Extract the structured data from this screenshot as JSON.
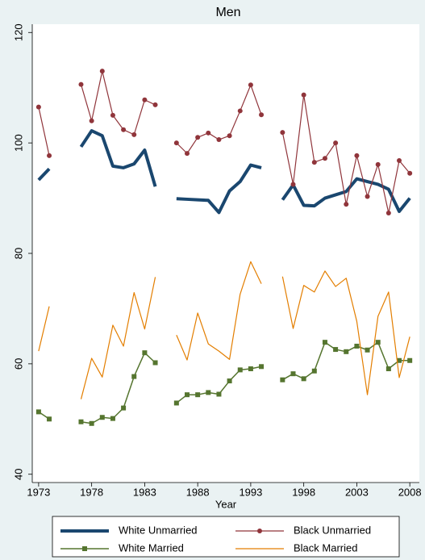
{
  "chart_data": {
    "type": "line",
    "title": "Men",
    "x_label": "Year",
    "x": [
      1973,
      1974,
      1975,
      1976,
      1977,
      1978,
      1979,
      1980,
      1981,
      1982,
      1983,
      1984,
      1985,
      1986,
      1987,
      1988,
      1989,
      1990,
      1991,
      1992,
      1993,
      1994,
      1995,
      1996,
      1997,
      1998,
      1999,
      2000,
      2001,
      2002,
      2003,
      2004,
      2005,
      2006,
      2007,
      2008
    ],
    "xlim": [
      1972.4,
      2008.9
    ],
    "xticks": [
      1973,
      1978,
      1983,
      1988,
      1993,
      1998,
      2003,
      2008
    ],
    "ylim": [
      38.5,
      121.5
    ],
    "yticks": [
      40,
      60,
      80,
      100,
      120
    ],
    "legend": "bottom",
    "series": [
      {
        "name": "White Unmarried",
        "color": "#1a476f",
        "line_width": 4,
        "marker": "none",
        "values": [
          93.3,
          95.3,
          null,
          null,
          99.3,
          102.2,
          101.3,
          95.8,
          95.5,
          96.2,
          98.7,
          92.1,
          null,
          89.9,
          89.8,
          89.7,
          89.6,
          87.4,
          91.3,
          93.0,
          96.0,
          95.5,
          null,
          89.7,
          92.4,
          88.7,
          88.6,
          90.0,
          90.6,
          91.2,
          93.5,
          93.0,
          92.5,
          91.6,
          87.6,
          90.0
        ]
      },
      {
        "name": "Black Unmarried",
        "color": "#90353b",
        "line_width": 1.2,
        "marker": "circle",
        "values": [
          106.5,
          97.7,
          null,
          null,
          110.6,
          104.0,
          113.0,
          105.0,
          102.4,
          101.5,
          107.8,
          106.9,
          null,
          100.0,
          98.1,
          101.0,
          101.8,
          100.6,
          101.3,
          105.8,
          110.5,
          105.1,
          null,
          101.9,
          92.5,
          108.7,
          96.5,
          97.2,
          100.0,
          88.9,
          97.7,
          90.3,
          96.1,
          87.3,
          96.8,
          94.5
        ]
      },
      {
        "name": "White Married",
        "color": "#55752f",
        "line_width": 1.5,
        "marker": "square",
        "values": [
          51.3,
          50.0,
          null,
          null,
          49.5,
          49.2,
          50.3,
          50.1,
          52.0,
          57.7,
          62.0,
          60.2,
          null,
          52.9,
          54.4,
          54.4,
          54.8,
          54.5,
          56.9,
          58.9,
          59.1,
          59.5,
          null,
          57.1,
          58.2,
          57.3,
          58.7,
          63.9,
          62.6,
          62.2,
          63.2,
          62.5,
          63.9,
          59.1,
          60.6,
          60.6
        ]
      },
      {
        "name": "Black Married",
        "color": "#e37e00",
        "line_width": 1.2,
        "marker": "none",
        "values": [
          62.3,
          70.4,
          null,
          null,
          53.6,
          61.0,
          57.6,
          67.0,
          63.2,
          72.9,
          66.3,
          75.7,
          null,
          65.2,
          60.7,
          69.2,
          63.6,
          62.3,
          60.8,
          72.6,
          78.5,
          74.5,
          null,
          75.8,
          66.4,
          74.2,
          73.0,
          76.8,
          74.0,
          75.5,
          67.7,
          54.4,
          68.6,
          73.0,
          57.5,
          64.9
        ]
      }
    ]
  }
}
